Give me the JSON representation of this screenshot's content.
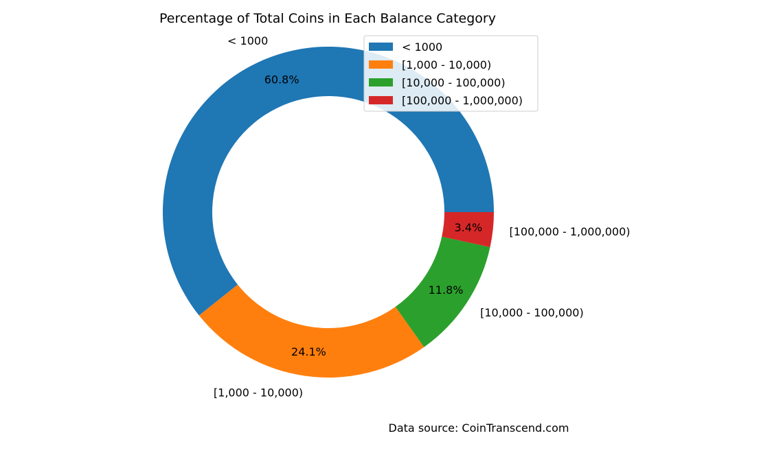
{
  "chart_data": {
    "type": "pie",
    "variant": "donut",
    "title": "Percentage of Total Coins in Each Balance Category",
    "labels": [
      "< 1000",
      "[1,000 - 10,000)",
      "[10,000 - 100,000)",
      "[100,000 - 1,000,000)"
    ],
    "values": [
      60.8,
      24.1,
      11.8,
      3.4
    ],
    "value_labels": [
      "60.8%",
      "24.1%",
      "11.8%",
      "3.4%"
    ],
    "colors": [
      "#1f77b4",
      "#ff7f0e",
      "#2ca02c",
      "#d62728"
    ],
    "start_angle_deg": 0,
    "direction": "counterclockwise",
    "legend": {
      "placement": "top-right",
      "entries": [
        "< 1000",
        "[1,000 - 10,000)",
        "[10,000 - 100,000)",
        "[100,000 - 1,000,000)"
      ]
    },
    "footnote": "Data source: CoinTranscend.com"
  }
}
